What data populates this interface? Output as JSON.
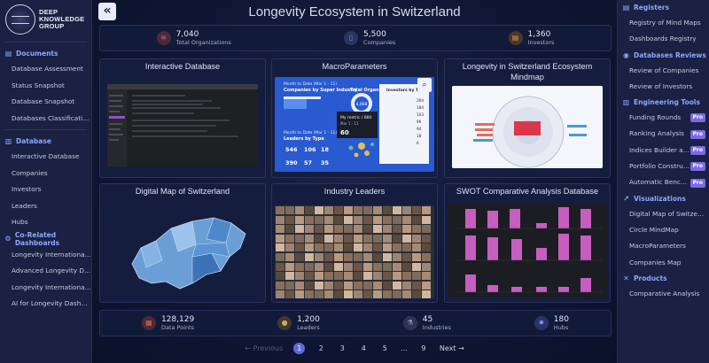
{
  "logo": {
    "line1": "DEEP",
    "line2": "KNOWLEDGE",
    "line3": "GROUP"
  },
  "left_sidebar": {
    "sections": [
      {
        "title": "Documents",
        "icon": "document-icon",
        "items": [
          "Database Assessment",
          "Status Snapshot",
          "Database Snapshot",
          "Databases Classifications"
        ]
      },
      {
        "title": "Database",
        "icon": "database-icon",
        "items": [
          "Interactive Database",
          "Companies",
          "Investors",
          "Leaders",
          "Hubs"
        ]
      },
      {
        "title": "Co-Related Dashboards",
        "icon": "dashboards-icon",
        "items": [
          "Longevity International ...",
          "Advanced Longevity Da...",
          "Longevity International ...",
          "AI for Longevity Dashbo..."
        ]
      }
    ]
  },
  "right_sidebar": {
    "sections": [
      {
        "title": "Registers",
        "icon": "register-icon",
        "items": [
          {
            "label": "Registry of Mind Maps",
            "pro": false
          },
          {
            "label": "Dashboards Registry",
            "pro": false
          }
        ]
      },
      {
        "title": "Databases Reviews",
        "icon": "eye-icon",
        "items": [
          {
            "label": "Review of Companies",
            "pro": false
          },
          {
            "label": "Review of Investors",
            "pro": false
          }
        ]
      },
      {
        "title": "Engineering Tools",
        "icon": "tools-icon",
        "items": [
          {
            "label": "Funding Rounds",
            "pro": true
          },
          {
            "label": "Ranking Analysis",
            "pro": true
          },
          {
            "label": "Indices Builder and ...",
            "pro": true
          },
          {
            "label": "Portfolio Constructor",
            "pro": true
          },
          {
            "label": "Automatic Benchma...",
            "pro": true
          }
        ]
      },
      {
        "title": "Visualizations",
        "icon": "chart-icon",
        "items": [
          {
            "label": "Digital Map of Switzerla...",
            "pro": false
          },
          {
            "label": "Circle MindMap",
            "pro": false
          },
          {
            "label": "MacroParameters",
            "pro": false
          },
          {
            "label": "Companies Map",
            "pro": false
          }
        ]
      },
      {
        "title": "Products",
        "icon": "products-icon",
        "items": [
          {
            "label": "Comparative Analysis",
            "pro": false
          }
        ]
      }
    ],
    "pro_label": "Pro"
  },
  "header": {
    "title": "Longevity Ecosystem in Switzerland",
    "collapse_icon": "double-chevron-left-icon"
  },
  "top_stats": [
    {
      "value": "7,040",
      "label": "Total Organizations",
      "icon": "layers-icon",
      "color": "#e0664d"
    },
    {
      "value": "5,500",
      "label": "Companies",
      "icon": "phone-icon",
      "color": "#6f8fe0"
    },
    {
      "value": "1,360",
      "label": "Investors",
      "icon": "clipboard-icon",
      "color": "#e0954d"
    }
  ],
  "cards": [
    {
      "title": "Interactive Database"
    },
    {
      "title": "MacroParameters"
    },
    {
      "title": "Longevity in Switzerland Ecosystem Mindmap"
    },
    {
      "title": "Digital Map of Switzerland"
    },
    {
      "title": "Industry Leaders"
    },
    {
      "title": "SWOT Comparative Analysis Database"
    }
  ],
  "macro": {
    "t1": "Month to Date (Mar 1 - 11)",
    "t2": "Companies by Super Industry",
    "t3": "Total Organizations",
    "t4": "Investors by Type",
    "donut": "4,668",
    "tip1": "My metric / 880",
    "tip2": "Mar 1 - 11",
    "tip3": "60",
    "t5": "Leaders by Type",
    "nums": [
      "546",
      "106",
      "18",
      "390",
      "57",
      "35"
    ],
    "inv": [
      "264",
      "184",
      "103",
      "96",
      "94",
      "18",
      "6"
    ]
  },
  "bottom_stats": [
    {
      "value": "128,129",
      "label": "Data Points",
      "icon": "grid-icon",
      "color": "#e0664d"
    },
    {
      "value": "1,200",
      "label": "Leaders",
      "icon": "person-icon",
      "color": "#caa66a"
    },
    {
      "value": "45",
      "label": "Industries",
      "icon": "flask-icon",
      "color": "#9aa3c0"
    },
    {
      "value": "180",
      "label": "Hubs",
      "icon": "hub-icon",
      "color": "#7d8ef0"
    }
  ],
  "pagination": {
    "prev": "Previous",
    "next": "Next",
    "pages": [
      "1",
      "2",
      "3",
      "4",
      "5",
      "...",
      "9"
    ],
    "current": "1"
  }
}
